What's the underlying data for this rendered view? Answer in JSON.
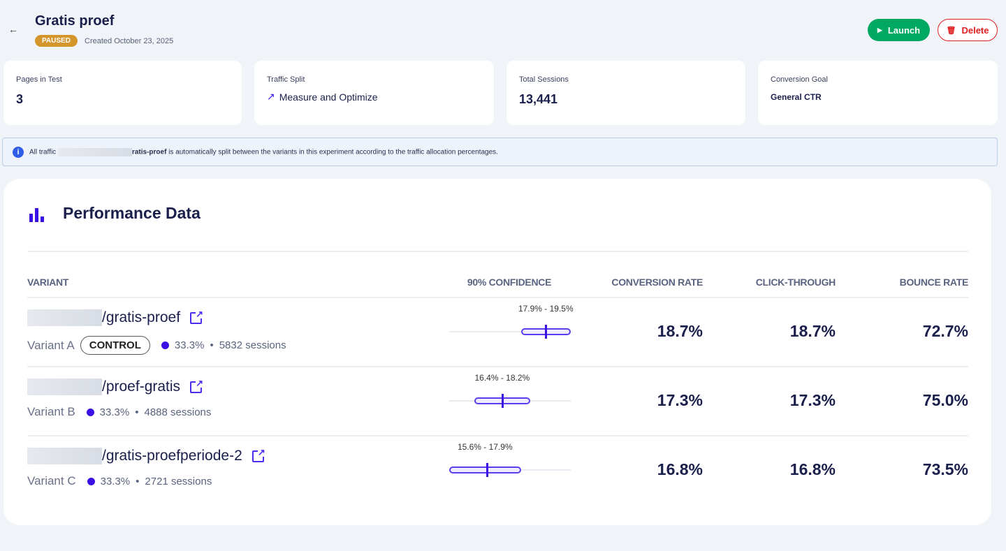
{
  "header": {
    "title": "Gratis proef",
    "status": "PAUSED",
    "created": "Created October 23, 2025",
    "launch": "Launch",
    "delete": "Delete"
  },
  "cards": [
    {
      "label": "Pages in Test",
      "value": "3"
    },
    {
      "label": "Traffic Split",
      "value": "Measure and Optimize"
    },
    {
      "label": "Total Sessions",
      "value": "13,441"
    },
    {
      "label": "Conversion Goal",
      "value": "General CTR"
    }
  ],
  "info": {
    "prefix": "All traffic",
    "bold": "ratis-proef",
    "suffix": "is automatically split between the variants in this experiment according to the traffic allocation percentages."
  },
  "performance": {
    "title": "Performance Data",
    "columns": [
      "VARIANT",
      "90% CONFIDENCE",
      "CONVERSION RATE",
      "CLICK-THROUGH",
      "BOUNCE RATE"
    ],
    "ci_domain": [
      15.6,
      19.5
    ],
    "rows": [
      {
        "path": "/gratis-proef",
        "variant": "Variant A",
        "control": "CONTROL",
        "split": "33.3%",
        "sessions": "5832 sessions",
        "ci_label": "17.9% - 19.5%",
        "ci": [
          17.9,
          19.5
        ],
        "point": 18.7,
        "conversion": "18.7%",
        "ctr": "18.7%",
        "bounce": "72.7%"
      },
      {
        "path": "/proef-gratis",
        "variant": "Variant B",
        "split": "33.3%",
        "sessions": "4888 sessions",
        "ci_label": "16.4% - 18.2%",
        "ci": [
          16.4,
          18.2
        ],
        "point": 17.3,
        "conversion": "17.3%",
        "ctr": "17.3%",
        "bounce": "75.0%"
      },
      {
        "path": "/gratis-proefperiode-2",
        "variant": "Variant C",
        "split": "33.3%",
        "sessions": "2721 sessions",
        "ci_label": "15.6% - 17.9%",
        "ci": [
          15.6,
          17.9
        ],
        "point": 16.8,
        "conversion": "16.8%",
        "ctr": "16.8%",
        "bounce": "73.5%"
      }
    ]
  }
}
